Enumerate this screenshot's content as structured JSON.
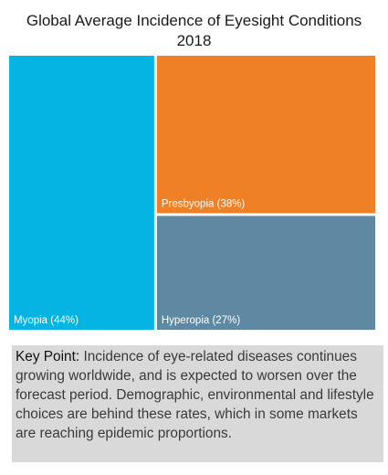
{
  "title": {
    "line1": "Global Average Incidence of Eyesight Conditions",
    "line2": "2018"
  },
  "chart_data": {
    "type": "treemap",
    "title": "Global Average Incidence of Eyesight Conditions 2018",
    "items": [
      {
        "label": "Myopia (44%)",
        "name": "Myopia",
        "value": 44,
        "color": "#05b4e3"
      },
      {
        "label": "Presbyopia (38%)",
        "name": "Presbyopia",
        "value": 38,
        "color": "#f08025"
      },
      {
        "label": "Hyperopia (27%)",
        "name": "Hyperopia",
        "value": 27,
        "color": "#5f88a2"
      }
    ]
  },
  "key_point": {
    "label": "Key Point:",
    "text": "Incidence of eye-related diseases continues growing worldwide, and is expected to worsen over the forecast period. Demographic, environmental and lifestyle choices are behind these rates, which in some markets are reaching epidemic proportions."
  }
}
